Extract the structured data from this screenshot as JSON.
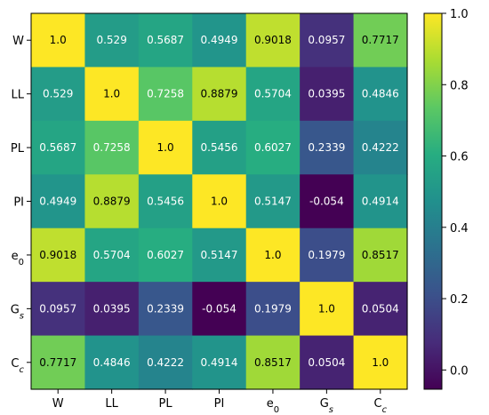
{
  "chart_data": {
    "type": "heatmap",
    "title": "",
    "rows": [
      "W",
      "LL",
      "PL",
      "PI",
      "e0",
      "Gs",
      "Cc"
    ],
    "columns": [
      "W",
      "LL",
      "PL",
      "PI",
      "e0",
      "Gs",
      "Cc"
    ],
    "row_labels": [
      {
        "main": "W",
        "sub": ""
      },
      {
        "main": "LL",
        "sub": ""
      },
      {
        "main": "PL",
        "sub": ""
      },
      {
        "main": "PI",
        "sub": ""
      },
      {
        "main": "e",
        "sub": "0"
      },
      {
        "main": "G",
        "sub": "s"
      },
      {
        "main": "C",
        "sub": "c"
      }
    ],
    "values": [
      [
        1.0,
        0.529,
        0.5687,
        0.4949,
        0.9018,
        0.0957,
        0.7717
      ],
      [
        0.529,
        1.0,
        0.7258,
        0.8879,
        0.5704,
        0.0395,
        0.4846
      ],
      [
        0.5687,
        0.7258,
        1.0,
        0.5456,
        0.6027,
        0.2339,
        0.4222
      ],
      [
        0.4949,
        0.8879,
        0.5456,
        1.0,
        0.5147,
        -0.054,
        0.4914
      ],
      [
        0.9018,
        0.5704,
        0.6027,
        0.5147,
        1.0,
        0.1979,
        0.8517
      ],
      [
        0.0957,
        0.0395,
        0.2339,
        -0.054,
        0.1979,
        1.0,
        0.0504
      ],
      [
        0.7717,
        0.4846,
        0.4222,
        0.4914,
        0.8517,
        0.0504,
        1.0
      ]
    ],
    "value_labels": [
      [
        "1.0",
        "0.529",
        "0.5687",
        "0.4949",
        "0.9018",
        "0.0957",
        "0.7717"
      ],
      [
        "0.529",
        "1.0",
        "0.7258",
        "0.8879",
        "0.5704",
        "0.0395",
        "0.4846"
      ],
      [
        "0.5687",
        "0.7258",
        "1.0",
        "0.5456",
        "0.6027",
        "0.2339",
        "0.4222"
      ],
      [
        "0.4949",
        "0.8879",
        "0.5456",
        "1.0",
        "0.5147",
        "-0.054",
        "0.4914"
      ],
      [
        "0.9018",
        "0.5704",
        "0.6027",
        "0.5147",
        "1.0",
        "0.1979",
        "0.8517"
      ],
      [
        "0.0957",
        "0.0395",
        "0.2339",
        "-0.054",
        "0.1979",
        "1.0",
        "0.0504"
      ],
      [
        "0.7717",
        "0.4846",
        "0.4222",
        "0.4914",
        "0.8517",
        "0.0504",
        "1.0"
      ]
    ],
    "colormap": "viridis",
    "vmin": -0.054,
    "vmax": 1.0,
    "colorbar": {
      "ticks": [
        0.0,
        0.2,
        0.4,
        0.6,
        0.8,
        1.0
      ],
      "tick_labels": [
        "0.0",
        "0.2",
        "0.4",
        "0.6",
        "0.8",
        "1.0"
      ],
      "placement": "right"
    },
    "text_color_light": "#ffffff",
    "text_color_dark": "#000000"
  }
}
